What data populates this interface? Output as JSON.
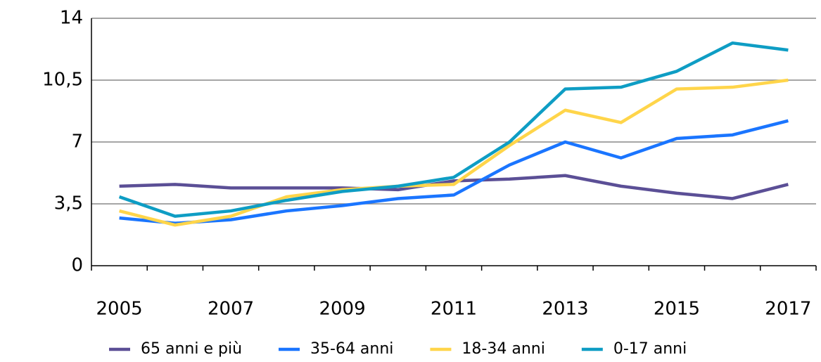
{
  "chart_data": {
    "type": "line",
    "categories": [
      "2005",
      null,
      "2007",
      null,
      "2009",
      null,
      "2011",
      null,
      "2013",
      null,
      "2015",
      null,
      "2017"
    ],
    "series": [
      {
        "name": "65 anni e più",
        "color": "#5b4f96",
        "values": [
          4.5,
          4.6,
          4.4,
          4.4,
          4.4,
          4.3,
          4.8,
          4.9,
          5.1,
          4.5,
          4.1,
          3.8,
          4.6
        ]
      },
      {
        "name": "35-64 anni",
        "color": "#1a75ff",
        "values": [
          2.7,
          2.4,
          2.6,
          3.1,
          3.4,
          3.8,
          4.0,
          5.7,
          7.0,
          6.1,
          7.2,
          7.4,
          8.2
        ]
      },
      {
        "name": "18-34 anni",
        "color": "#ffd54a",
        "values": [
          3.1,
          2.3,
          2.8,
          3.9,
          4.3,
          4.5,
          4.6,
          6.8,
          8.8,
          8.1,
          10.0,
          10.1,
          10.5
        ]
      },
      {
        "name": "0-17 anni",
        "color": "#0e9dc4",
        "values": [
          3.9,
          2.8,
          3.1,
          3.7,
          4.2,
          4.5,
          5.0,
          7.0,
          10.0,
          10.1,
          11.0,
          12.6,
          12.2
        ]
      }
    ],
    "ylim": [
      0,
      14
    ],
    "yticks": [
      0,
      {
        "value": 3.5,
        "label": "3,5"
      },
      7,
      {
        "value": 10.5,
        "label": "10,5"
      },
      14
    ],
    "grid": true,
    "legend": "bottom"
  }
}
